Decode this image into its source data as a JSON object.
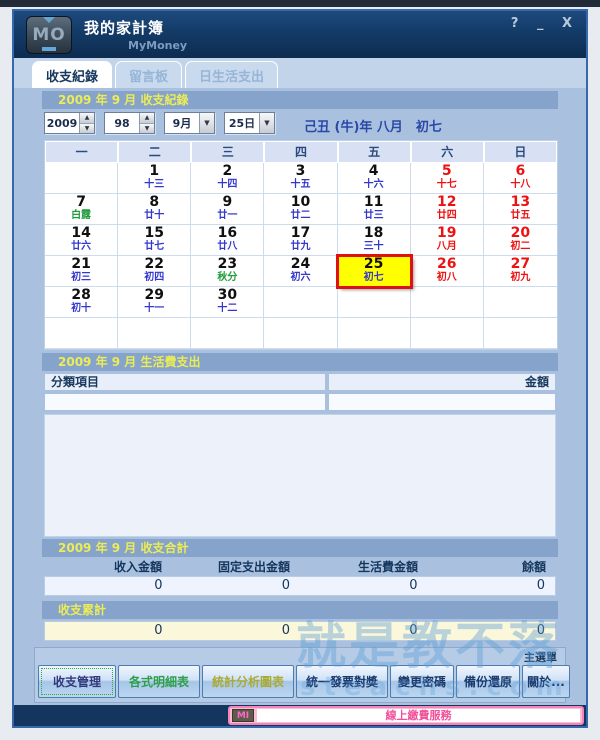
{
  "window": {
    "title": "我的家計簿",
    "subtitle": "MyMoney",
    "logo": "MO",
    "controls": {
      "help": "?",
      "minimize": "_",
      "close": "X"
    }
  },
  "tabs": [
    {
      "label": "收支紀錄"
    },
    {
      "label": "留言板"
    },
    {
      "label": "日生活支出"
    }
  ],
  "record_section": {
    "header": "2009 年 9 月  收支紀錄",
    "year": "2009",
    "roc_year": "98",
    "month": "9月",
    "day": "25日",
    "lunar_line": "己丑 (牛)年 八月　初七"
  },
  "calendar": {
    "weekdays": [
      "一",
      "二",
      "三",
      "四",
      "五",
      "六",
      "日"
    ],
    "weeks": [
      [
        {
          "d": "",
          "l": ""
        },
        {
          "d": "1",
          "l": "十三"
        },
        {
          "d": "2",
          "l": "十四"
        },
        {
          "d": "3",
          "l": "十五"
        },
        {
          "d": "4",
          "l": "十六"
        },
        {
          "d": "5",
          "l": "十七",
          "w": true
        },
        {
          "d": "6",
          "l": "十八",
          "w": true
        }
      ],
      [
        {
          "d": "7",
          "l": "白露",
          "g": true
        },
        {
          "d": "8",
          "l": "廿十"
        },
        {
          "d": "9",
          "l": "廿一"
        },
        {
          "d": "10",
          "l": "廿二"
        },
        {
          "d": "11",
          "l": "廿三"
        },
        {
          "d": "12",
          "l": "廿四",
          "w": true
        },
        {
          "d": "13",
          "l": "廿五",
          "w": true
        }
      ],
      [
        {
          "d": "14",
          "l": "廿六"
        },
        {
          "d": "15",
          "l": "廿七"
        },
        {
          "d": "16",
          "l": "廿八"
        },
        {
          "d": "17",
          "l": "廿九"
        },
        {
          "d": "18",
          "l": "三十"
        },
        {
          "d": "19",
          "l": "八月",
          "w": true
        },
        {
          "d": "20",
          "l": "初二",
          "w": true
        }
      ],
      [
        {
          "d": "21",
          "l": "初三"
        },
        {
          "d": "22",
          "l": "初四"
        },
        {
          "d": "23",
          "l": "秋分",
          "g": true
        },
        {
          "d": "24",
          "l": "初六"
        },
        {
          "d": "25",
          "l": "初七",
          "sel": true
        },
        {
          "d": "26",
          "l": "初八",
          "w": true
        },
        {
          "d": "27",
          "l": "初九",
          "w": true
        }
      ],
      [
        {
          "d": "28",
          "l": "初十"
        },
        {
          "d": "29",
          "l": "十一"
        },
        {
          "d": "30",
          "l": "十二"
        },
        {
          "d": "",
          "l": ""
        },
        {
          "d": "",
          "l": ""
        },
        {
          "d": "",
          "l": ""
        },
        {
          "d": "",
          "l": ""
        }
      ],
      [
        {
          "d": "",
          "l": ""
        },
        {
          "d": "",
          "l": ""
        },
        {
          "d": "",
          "l": ""
        },
        {
          "d": "",
          "l": ""
        },
        {
          "d": "",
          "l": ""
        },
        {
          "d": "",
          "l": ""
        },
        {
          "d": "",
          "l": ""
        }
      ]
    ]
  },
  "expense_section": {
    "header": "2009 年 9 月  生活費支出",
    "columns": [
      "分類項目",
      "金額"
    ]
  },
  "totals_section": {
    "header": "2009 年 9 月  收支合計",
    "columns": [
      "收入金額",
      "固定支出金額",
      "生活費金額",
      "餘額"
    ],
    "values": [
      "0",
      "0",
      "0",
      "0"
    ]
  },
  "accum_section": {
    "header": "收支累計",
    "values": [
      "0",
      "0",
      "0",
      "0"
    ]
  },
  "menu": {
    "label": "主選單",
    "buttons": [
      {
        "label": "收支管理",
        "color": "purple",
        "focused": true
      },
      {
        "label": "各式明細表",
        "color": "green"
      },
      {
        "label": "統計分析圖表",
        "color": "olive"
      },
      {
        "label": "統一發票對獎",
        "color": "navy"
      },
      {
        "label": "變更密碼",
        "color": "navy"
      },
      {
        "label": "備份還原",
        "color": "navy"
      },
      {
        "label": "關於...",
        "color": "navy"
      }
    ]
  },
  "bottom_bar": {
    "logo": "MI",
    "text": "線上繳費服務"
  },
  "watermark": {
    "line1": "就是教不落",
    "line2": "steachs.com"
  },
  "colors": {
    "selected_day_bg": "#ffff00",
    "selected_day_border": "#e01010",
    "weekend": "#ee1111",
    "lunar": "#3333cc",
    "solar_term": "#1f9e3a",
    "header_bar": "#86a3cb",
    "header_bar_text": "#ecec55",
    "banner_pink": "#f584b8"
  }
}
